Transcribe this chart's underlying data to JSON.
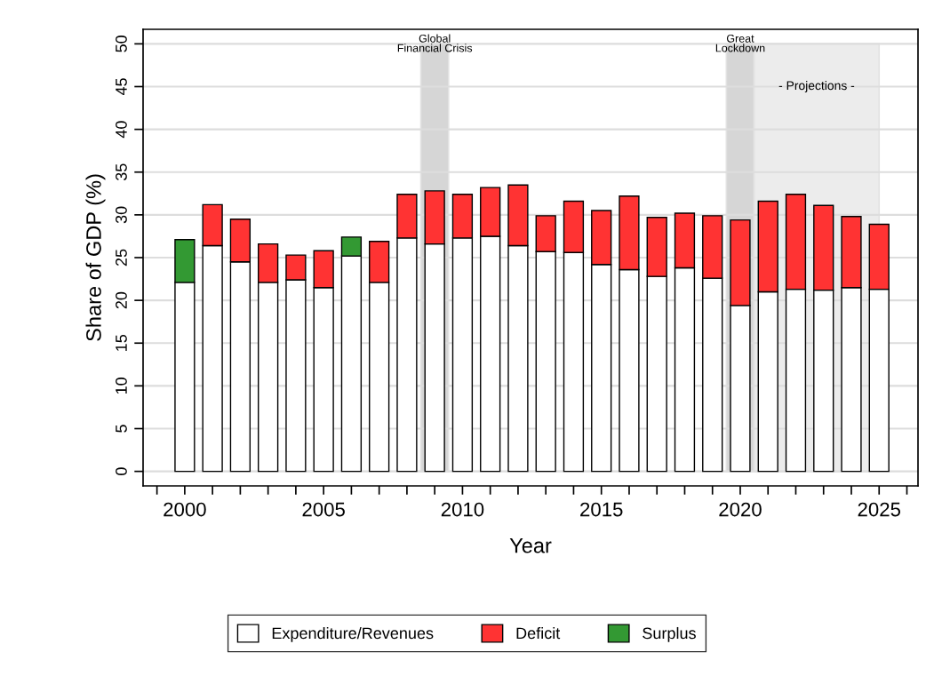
{
  "chart_data": {
    "type": "bar",
    "stacked": true,
    "xlabel": "Year",
    "ylabel": "Share of GDP (%)",
    "x": [
      2000,
      2001,
      2002,
      2003,
      2004,
      2005,
      2006,
      2007,
      2008,
      2009,
      2010,
      2011,
      2012,
      2013,
      2014,
      2015,
      2016,
      2017,
      2018,
      2019,
      2020,
      2021,
      2022,
      2023,
      2024,
      2025
    ],
    "series": [
      {
        "name": "Expenditure/Revenues",
        "color": "#ffffff",
        "values": [
          22.1,
          26.4,
          24.5,
          22.1,
          22.4,
          21.5,
          25.2,
          22.1,
          27.3,
          26.6,
          27.3,
          27.5,
          26.4,
          25.7,
          25.6,
          24.2,
          23.6,
          22.8,
          23.8,
          22.6,
          19.4,
          21.0,
          21.3,
          21.2,
          21.5,
          21.3
        ]
      },
      {
        "name": "Deficit",
        "color": "#ff3333",
        "values": [
          null,
          4.8,
          5.0,
          4.5,
          2.9,
          4.3,
          null,
          4.8,
          5.1,
          6.2,
          5.1,
          5.7,
          7.1,
          4.2,
          6.0,
          6.3,
          8.6,
          6.9,
          6.4,
          7.3,
          10.0,
          10.6,
          11.1,
          9.9,
          8.3,
          7.6
        ]
      },
      {
        "name": "Surplus",
        "color": "#339933",
        "values": [
          5.0,
          null,
          null,
          null,
          null,
          null,
          2.2,
          null,
          null,
          null,
          null,
          null,
          null,
          null,
          null,
          null,
          null,
          null,
          null,
          null,
          null,
          null,
          null,
          null,
          null,
          null
        ]
      }
    ],
    "xlim": [
      1998.5,
      2026.4
    ],
    "xticks": [
      {
        "value": 1999,
        "label": null
      },
      2000,
      {
        "value": 2001,
        "label": null
      },
      {
        "value": 2002,
        "label": null
      },
      {
        "value": 2003,
        "label": null
      },
      {
        "value": 2004,
        "label": null
      },
      2005,
      {
        "value": 2006,
        "label": null
      },
      {
        "value": 2007,
        "label": null
      },
      {
        "value": 2008,
        "label": null
      },
      {
        "value": 2009,
        "label": null
      },
      2010,
      {
        "value": 2011,
        "label": null
      },
      {
        "value": 2012,
        "label": null
      },
      {
        "value": 2013,
        "label": null
      },
      {
        "value": 2014,
        "label": null
      },
      2015,
      {
        "value": 2016,
        "label": null
      },
      {
        "value": 2017,
        "label": null
      },
      {
        "value": 2018,
        "label": null
      },
      {
        "value": 2019,
        "label": null
      },
      2020,
      {
        "value": 2021,
        "label": null
      },
      {
        "value": 2022,
        "label": null
      },
      {
        "value": 2023,
        "label": null
      },
      {
        "value": 2024,
        "label": null
      },
      2025,
      {
        "value": 2026,
        "label": null
      }
    ],
    "ylim": [
      -1.7,
      51.7
    ],
    "yticks": [
      0,
      5,
      10,
      15,
      20,
      25,
      30,
      35,
      40,
      45,
      50
    ],
    "grid": "y",
    "legend": "bottom",
    "bands": [
      {
        "axis": "x",
        "from": 2008.5,
        "to": 2009.5,
        "label": "Global\nFinancial Crisis",
        "color": "#d6d6d6"
      },
      {
        "axis": "x",
        "from": 2019.5,
        "to": 2020.5,
        "label": "Great\nLockdown",
        "color": "#d6d6d6"
      },
      {
        "axis": "x",
        "from": 2020.5,
        "to": 2025,
        "label": "- Projections -",
        "color": "#ececec"
      }
    ]
  }
}
